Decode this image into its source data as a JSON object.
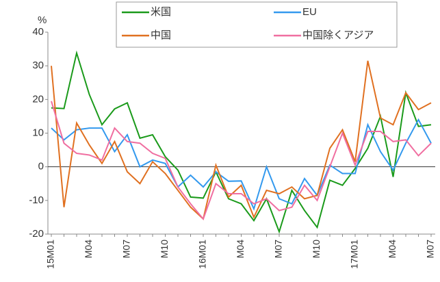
{
  "chart_data": {
    "type": "line",
    "y_unit_label": "%",
    "categories": [
      "15M01",
      null,
      null,
      "M04",
      null,
      null,
      "M07",
      null,
      null,
      "M10",
      null,
      null,
      "16M01",
      null,
      null,
      "M04",
      null,
      null,
      "M07",
      null,
      null,
      "M10",
      null,
      null,
      "17M01",
      null,
      null,
      "M04",
      null,
      null,
      "M07"
    ],
    "series": [
      {
        "name": "米国",
        "color": "#1a9a1a",
        "values": [
          17.5,
          17.3,
          33.8,
          21.5,
          12.5,
          17.2,
          19,
          8.5,
          9.5,
          3,
          -1,
          -9,
          -9.3,
          -1.5,
          -9.5,
          -11,
          -16,
          -9.5,
          -19.3,
          -7,
          -13,
          -18,
          -4,
          -5.5,
          -0.5,
          5.5,
          15,
          -3,
          22,
          12,
          12.5
        ]
      },
      {
        "name": "EU",
        "color": "#3399ee",
        "values": [
          11.5,
          8,
          11,
          11.5,
          11.5,
          4.5,
          9.5,
          0,
          2,
          1,
          -6,
          -2.5,
          -6,
          -1.5,
          -4.3,
          -4.2,
          -12.5,
          0,
          -9.5,
          -11,
          -3.5,
          -8.5,
          0.5,
          -2,
          -2,
          12.5,
          4.5,
          -1,
          7,
          14,
          7
        ]
      },
      {
        "name": "中国",
        "color": "#e07020",
        "values": [
          30,
          -12,
          13,
          6.5,
          1,
          7.5,
          -1.5,
          -5,
          1.5,
          -2,
          -7,
          -12,
          -15.5,
          0.5,
          -9,
          -5.5,
          -15,
          -7,
          -8,
          -6,
          -9.5,
          -8.5,
          5.5,
          11,
          1.5,
          31.5,
          14.5,
          12.5,
          22,
          17,
          19
        ]
      },
      {
        "name": "中国除くアジア",
        "color": "#f06ea0",
        "values": [
          19.5,
          7,
          4,
          3.5,
          2,
          11.5,
          7.5,
          7,
          4,
          2.5,
          -6,
          -11,
          -15.5,
          -5,
          -8,
          -8,
          -11,
          -9.5,
          -13,
          -12,
          -5.5,
          -10,
          0,
          10,
          0.5,
          10.5,
          10.5,
          7.5,
          8,
          3.3,
          7
        ]
      }
    ],
    "ylim": [
      -20,
      40
    ],
    "yticks": [
      -20,
      -10,
      0,
      10,
      20,
      30,
      40
    ],
    "grid": false
  }
}
